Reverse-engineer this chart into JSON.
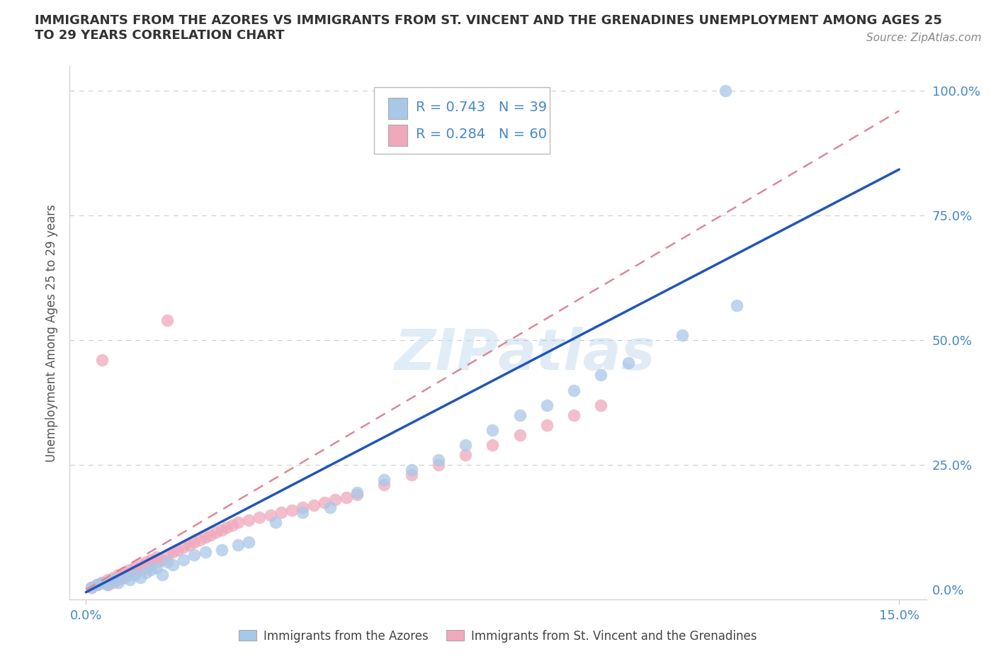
{
  "title_line1": "IMMIGRANTS FROM THE AZORES VS IMMIGRANTS FROM ST. VINCENT AND THE GRENADINES UNEMPLOYMENT AMONG AGES 25",
  "title_line2": "TO 29 YEARS CORRELATION CHART",
  "source": "Source: ZipAtlas.com",
  "ylabel_label": "Unemployment Among Ages 25 to 29 years",
  "legend1_R": "0.743",
  "legend1_N": "39",
  "legend2_R": "0.284",
  "legend2_N": "60",
  "azores_color": "#a8c8e8",
  "svg_color": "#f0a8bc",
  "line1_color": "#2255bb",
  "line2_color": "#dd8899",
  "watermark_color": "#c8dff0",
  "grid_color": "#cccccc",
  "tick_color": "#4488cc",
  "text_color": "#333333",
  "source_color": "#888888",
  "xmin": 0.0,
  "xmax": 0.15,
  "ymin": 0.0,
  "ymax": 1.0,
  "line1_slope": 5.65,
  "line1_intercept": -0.005,
  "line2_slope": 6.4,
  "line2_intercept": 0.0,
  "azores_x": [
    0.001,
    0.002,
    0.003,
    0.004,
    0.005,
    0.006,
    0.007,
    0.008,
    0.009,
    0.01,
    0.011,
    0.012,
    0.013,
    0.014,
    0.015,
    0.016,
    0.018,
    0.02,
    0.022,
    0.025,
    0.028,
    0.03,
    0.035,
    0.04,
    0.045,
    0.05,
    0.055,
    0.06,
    0.065,
    0.07,
    0.075,
    0.08,
    0.085,
    0.09,
    0.095,
    0.1,
    0.11,
    0.12,
    0.118
  ],
  "azores_y": [
    0.005,
    0.01,
    0.015,
    0.01,
    0.02,
    0.015,
    0.025,
    0.02,
    0.03,
    0.025,
    0.035,
    0.04,
    0.045,
    0.03,
    0.055,
    0.05,
    0.06,
    0.07,
    0.075,
    0.08,
    0.09,
    0.095,
    0.135,
    0.155,
    0.165,
    0.195,
    0.22,
    0.24,
    0.26,
    0.29,
    0.32,
    0.35,
    0.37,
    0.4,
    0.43,
    0.455,
    0.51,
    0.57,
    1.0
  ],
  "svg_x": [
    0.001,
    0.002,
    0.003,
    0.003,
    0.004,
    0.004,
    0.005,
    0.005,
    0.006,
    0.006,
    0.007,
    0.007,
    0.008,
    0.008,
    0.009,
    0.009,
    0.01,
    0.01,
    0.011,
    0.011,
    0.012,
    0.012,
    0.013,
    0.013,
    0.014,
    0.015,
    0.015,
    0.016,
    0.017,
    0.018,
    0.019,
    0.02,
    0.021,
    0.022,
    0.023,
    0.024,
    0.025,
    0.026,
    0.027,
    0.028,
    0.03,
    0.032,
    0.034,
    0.036,
    0.038,
    0.04,
    0.042,
    0.044,
    0.046,
    0.048,
    0.05,
    0.055,
    0.06,
    0.065,
    0.07,
    0.075,
    0.08,
    0.085,
    0.09,
    0.095
  ],
  "svg_y": [
    0.005,
    0.01,
    0.015,
    0.46,
    0.01,
    0.02,
    0.015,
    0.025,
    0.02,
    0.03,
    0.025,
    0.035,
    0.03,
    0.04,
    0.035,
    0.045,
    0.04,
    0.05,
    0.045,
    0.055,
    0.05,
    0.06,
    0.055,
    0.065,
    0.06,
    0.07,
    0.54,
    0.075,
    0.08,
    0.085,
    0.09,
    0.095,
    0.1,
    0.105,
    0.11,
    0.115,
    0.12,
    0.125,
    0.13,
    0.135,
    0.14,
    0.145,
    0.15,
    0.155,
    0.16,
    0.165,
    0.17,
    0.175,
    0.18,
    0.185,
    0.19,
    0.21,
    0.23,
    0.25,
    0.27,
    0.29,
    0.31,
    0.33,
    0.35,
    0.37
  ]
}
